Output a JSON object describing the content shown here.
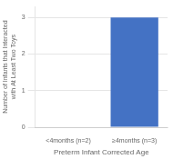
{
  "chart_data": {
    "type": "bar",
    "categories": [
      "<4months (n=2)",
      "≥4months (n=3)"
    ],
    "values": [
      0,
      3
    ],
    "color": "#4472C4",
    "ylabel": "Number of Infants that Interacted\nwith At Least Two Toys",
    "xlabel": "Preterm Infant Corrected Age",
    "ylim": [
      0,
      3.3
    ],
    "yticks": [
      0,
      1,
      2,
      3
    ],
    "grid": true
  }
}
